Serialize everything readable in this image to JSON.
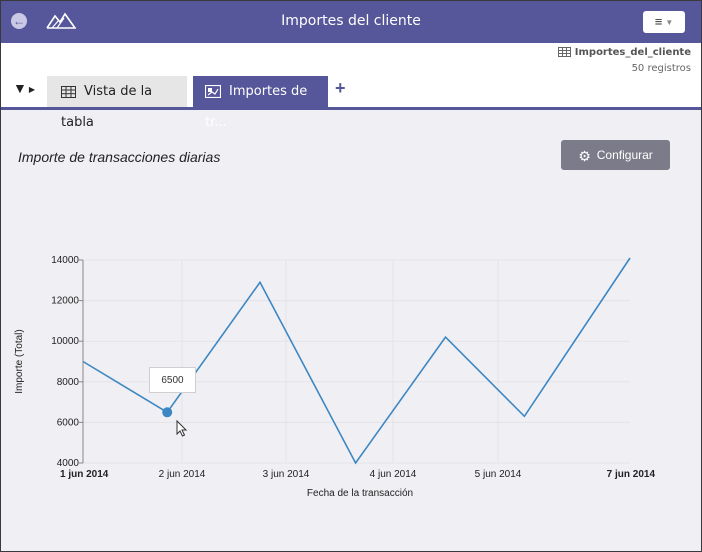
{
  "header": {
    "title": "Importes del cliente",
    "back_icon": "back-arrow-icon",
    "logo_icon": "mountains-logo-icon",
    "menu_icon": "hamburger-menu-icon",
    "menu_glyph": "≡",
    "accent_color": "#56569a"
  },
  "toolbar": {
    "filter_glyph": "▼",
    "tabs": [
      {
        "label": "Vista de la tabla",
        "icon": "table-icon"
      },
      {
        "label": "Importes de tr...",
        "icon": "chart-icon"
      }
    ],
    "add_glyph": "+",
    "source": {
      "name": "Importes_del_cliente",
      "count": "50 registros"
    }
  },
  "main": {
    "chart_title": "Importe de transacciones diarias",
    "config_label": "Configurar",
    "tooltip_value": "6500"
  },
  "chart_data": {
    "type": "line",
    "title": "Importe de transacciones diarias",
    "xlabel": "Fecha de la transacción",
    "ylabel": "Importe (Total)",
    "x_tick_labels": [
      "1 jun 2014",
      "2 jun 2014",
      "3 jun 2014",
      "4 jun 2014",
      "5 jun 2014",
      "7 jun 2014"
    ],
    "y_ticks": [
      4000,
      6000,
      8000,
      10000,
      12000,
      14000
    ],
    "ylim": [
      4000,
      14000
    ],
    "xlim_days": [
      1,
      7
    ],
    "series": [
      {
        "name": "Importe (Total)",
        "color": "#3d87c2",
        "points": [
          {
            "x": 1.0,
            "y": 9000
          },
          {
            "x": 1.85,
            "y": 6500
          },
          {
            "x": 2.75,
            "y": 12900
          },
          {
            "x": 3.65,
            "y": 4000
          },
          {
            "x": 4.5,
            "y": 10200
          },
          {
            "x": 5.4,
            "y": 6300
          },
          {
            "x": 7.0,
            "y": 14100
          }
        ]
      }
    ],
    "highlight_point_index": 1,
    "grid": true
  }
}
